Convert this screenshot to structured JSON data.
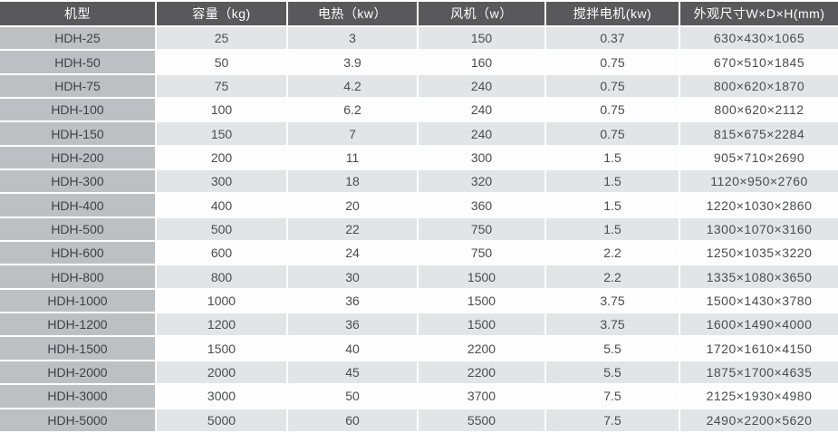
{
  "colors": {
    "header_bg": "#59595b",
    "header_text": "#ffffff",
    "col1_bg": "#bcc0c2",
    "row_odd_bg": "#e2e5e7",
    "row_even_bg": "#fdfdfd",
    "separator": "#ffffff",
    "cell_text": "#4a4c4e",
    "model_text": "#3f4245"
  },
  "table": {
    "columns": [
      {
        "key": "model",
        "label": "机型"
      },
      {
        "key": "capacity",
        "label": "容量（kg)"
      },
      {
        "key": "heating-power",
        "label": "电热（kw）"
      },
      {
        "key": "fan-power",
        "label": "风机（w）"
      },
      {
        "key": "mixer-motor",
        "label": "搅拌电机(kw)"
      },
      {
        "key": "dimensions",
        "label": "外观尺寸W×D×H(mm)"
      }
    ],
    "rows": [
      [
        "HDH-25",
        "25",
        "3",
        "150",
        "0.37",
        "630×430×1065"
      ],
      [
        "HDH-50",
        "50",
        "3.9",
        "160",
        "0.75",
        "670×510×1845"
      ],
      [
        "HDH-75",
        "75",
        "4.2",
        "240",
        "0.75",
        "800×620×1870"
      ],
      [
        "HDH-100",
        "100",
        "6.2",
        "240",
        "0.75",
        "800×620×2112"
      ],
      [
        "HDH-150",
        "150",
        "7",
        "240",
        "0.75",
        "815×675×2284"
      ],
      [
        "HDH-200",
        "200",
        "11",
        "300",
        "1.5",
        "905×710×2690"
      ],
      [
        "HDH-300",
        "300",
        "18",
        "320",
        "1.5",
        "1120×950×2760"
      ],
      [
        "HDH-400",
        "400",
        "20",
        "360",
        "1.5",
        "1220×1030×2860"
      ],
      [
        "HDH-500",
        "500",
        "22",
        "750",
        "1.5",
        "1300×1070×3160"
      ],
      [
        "HDH-600",
        "600",
        "24",
        "750",
        "2.2",
        "1250×1035×3220"
      ],
      [
        "HDH-800",
        "800",
        "30",
        "1500",
        "2.2",
        "1335×1080×3650"
      ],
      [
        "HDH-1000",
        "1000",
        "36",
        "1500",
        "3.75",
        "1500×1430×3780"
      ],
      [
        "HDH-1200",
        "1200",
        "36",
        "1500",
        "3.75",
        "1600×1490×4000"
      ],
      [
        "HDH-1500",
        "1500",
        "40",
        "2200",
        "5.5",
        "1720×1610×4150"
      ],
      [
        "HDH-2000",
        "2000",
        "45",
        "2200",
        "5.5",
        "1875×1700×4635"
      ],
      [
        "HDH-3000",
        "3000",
        "50",
        "3700",
        "7.5",
        "2125×1930×4980"
      ],
      [
        "HDH-5000",
        "5000",
        "60",
        "5500",
        "7.5",
        "2490×2200×5620"
      ]
    ]
  }
}
